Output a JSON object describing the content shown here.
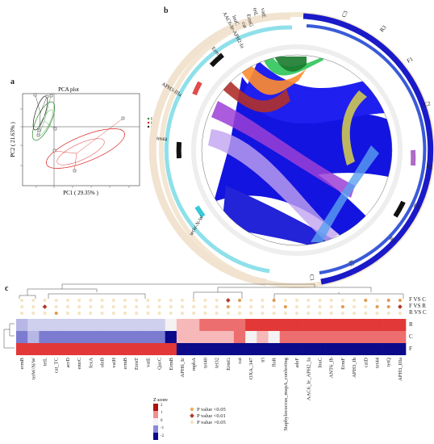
{
  "panels": {
    "a": "a",
    "b": "b",
    "c": "c"
  },
  "pca": {
    "title": "PCA plot",
    "xlabel": "PC1 ( 29.35% )",
    "ylabel": "PC2 ( 21.63% )",
    "legend": [
      "F",
      "R",
      "C"
    ],
    "colors": {
      "F": "#2d8a2d",
      "R": "#d81b1b",
      "C": "#222222"
    },
    "point_labels": [
      "F1",
      "F2",
      "F3",
      "R1",
      "R2",
      "R3",
      "C1",
      "C2",
      "C3"
    ]
  },
  "circos": {
    "gene_labels": [
      "AAC6-Ie-APH2-Ia",
      "lnuC",
      "cat",
      "ErmB",
      "tetL",
      "vatE",
      "ErmG",
      "APH3-IIIa",
      "tet44",
      "tetW-N-W"
    ],
    "sample_labels": [
      "C3",
      "R3",
      "F1",
      "C2",
      "R2",
      "F3",
      "R1",
      "F2",
      "C1"
    ]
  },
  "heatmap": {
    "row_labels": [
      "F VS C",
      "F VS R",
      "R VS C",
      "R",
      "C",
      "F"
    ],
    "genes": [
      "ermB",
      "tetW/N/W",
      "tetL",
      "cat_TC",
      "acrD",
      "emrC",
      "fexA",
      "oleB",
      "vatH",
      "ermB",
      "ErmT",
      "vatE",
      "QacC",
      "ErmB",
      "APH6_Ic",
      "mphA",
      "tet40",
      "tet32",
      "ErmG",
      "cat",
      "OXA_347",
      "tri",
      "floR",
      "Staphylococcus_mupA_conferring",
      "adeF",
      "AAC6_Ie_APH2_Ia",
      "lnuC",
      "ANT6_Ib",
      "ErmF",
      "APH3_Ib",
      "catD",
      "tet44",
      "tetQ",
      "APH3_IIIa"
    ],
    "legend_title": "Z score",
    "legend_ticks": [
      "2",
      "1",
      "0",
      "-1",
      "-2"
    ],
    "pvalue_legend": [
      "P value <0.05",
      "P value <0.01",
      "P value >0.05"
    ]
  }
}
